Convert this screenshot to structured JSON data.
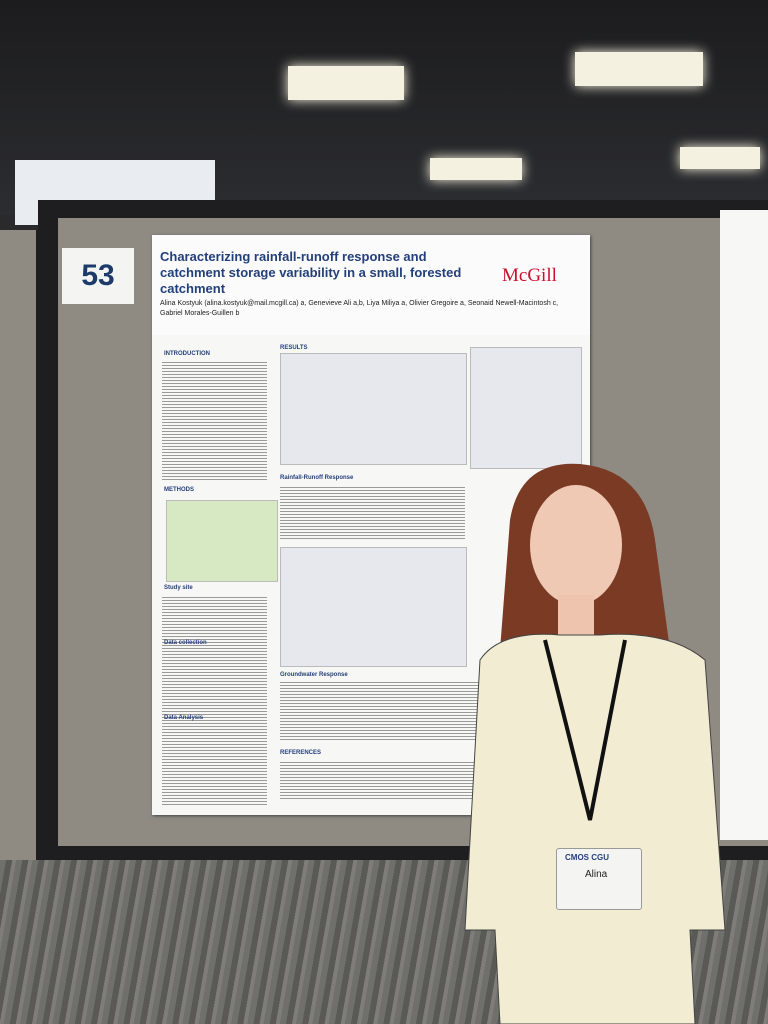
{
  "poster_number": "53",
  "poster": {
    "title": "Characterizing rainfall-runoff response and catchment storage variability in a small, forested catchment",
    "logo": "McGill",
    "authors": "Alina Kostyuk (alina.kostyuk@mail.mcgill.ca) a, Genevieve Ali a,b, Liya Miliya a, Olivier Gregoire a, Seonaid Newell-Macintosh c, Gabriel Morales-Guillen b",
    "sections": [
      "INTRODUCTION",
      "METHODS",
      "Study site",
      "Data collection",
      "Data Analysis",
      "RESULTS",
      "Rainfall-Runoff Response",
      "Groundwater Response",
      "REFERENCES"
    ]
  },
  "badge": {
    "event": "CMOS CGU",
    "name": "Alina"
  }
}
